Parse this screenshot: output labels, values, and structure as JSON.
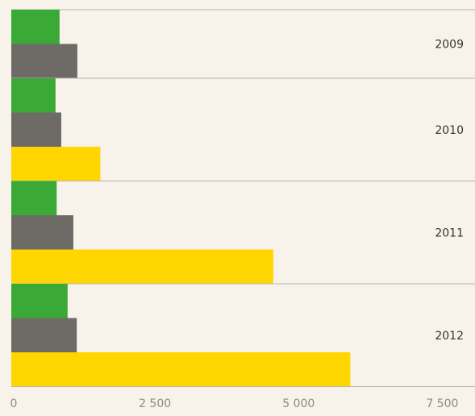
{
  "chart_data": {
    "type": "hbar",
    "categories": [
      "2009",
      "2010",
      "2011",
      "2012"
    ],
    "series": [
      {
        "color": "#3aa935",
        "values": [
          840,
          770,
          790,
          980
        ]
      },
      {
        "color": "#6e6b66",
        "values": [
          1150,
          870,
          1080,
          1140
        ]
      },
      {
        "color": "#ffd600",
        "values": [
          null,
          1550,
          4560,
          5900
        ]
      }
    ],
    "xlim": [
      0,
      8000
    ],
    "xticks": [
      0,
      {
        "value": 2500,
        "label": "2 500"
      },
      {
        "value": 5000,
        "label": "5 000"
      },
      {
        "value": 7500,
        "label": "7 500"
      }
    ],
    "grid": false
  }
}
